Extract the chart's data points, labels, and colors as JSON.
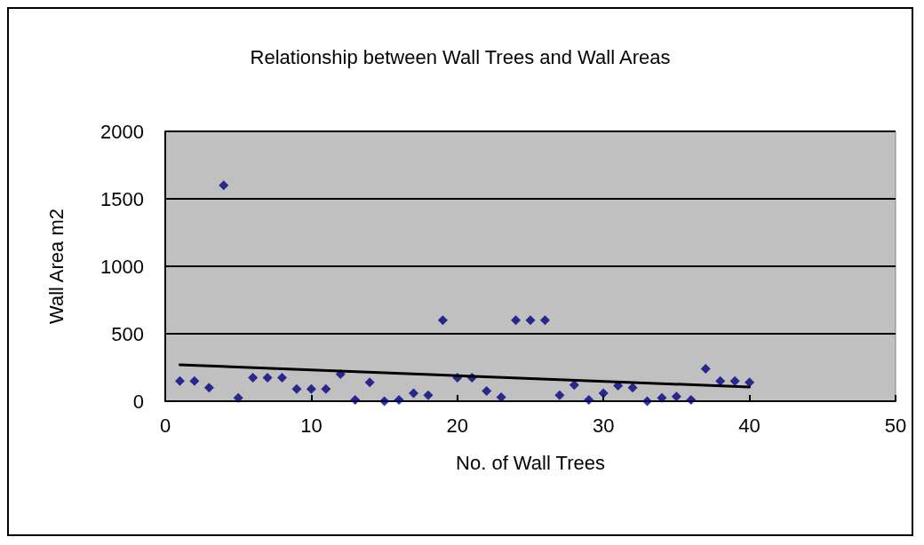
{
  "chart_data": {
    "type": "scatter",
    "title": "Relationship between Wall Trees and Wall Areas",
    "xlabel": "No. of Wall Trees",
    "ylabel": "Wall Area m2",
    "xlim": [
      0,
      50
    ],
    "xticks": [
      0,
      10,
      20,
      30,
      40,
      50
    ],
    "ylim": [
      0,
      2000
    ],
    "yticks": [
      0,
      500,
      1000,
      1500,
      2000
    ],
    "grid": "y",
    "marker": "diamond",
    "series": [
      {
        "color": "#000080",
        "x": [
          1,
          2,
          3,
          4,
          5,
          6,
          7,
          8,
          9,
          10,
          11,
          12,
          13,
          14,
          15,
          16,
          17,
          18,
          19,
          20,
          21,
          22,
          23,
          24,
          25,
          26,
          27,
          28,
          29,
          30,
          31,
          32,
          33,
          34,
          35,
          36,
          37,
          38,
          39,
          40
        ],
        "values": [
          150,
          150,
          100,
          1600,
          25,
          175,
          175,
          175,
          90,
          90,
          90,
          200,
          10,
          140,
          0,
          10,
          60,
          45,
          600,
          175,
          175,
          75,
          30,
          600,
          600,
          600,
          45,
          120,
          10,
          60,
          115,
          100,
          0,
          25,
          35,
          10,
          240,
          150,
          150,
          140
        ]
      },
      {
        "type": "line",
        "color": "#000000",
        "marker": "none",
        "line_style": "solid",
        "x": [
          1,
          40
        ],
        "values": [
          270,
          105
        ]
      }
    ]
  }
}
